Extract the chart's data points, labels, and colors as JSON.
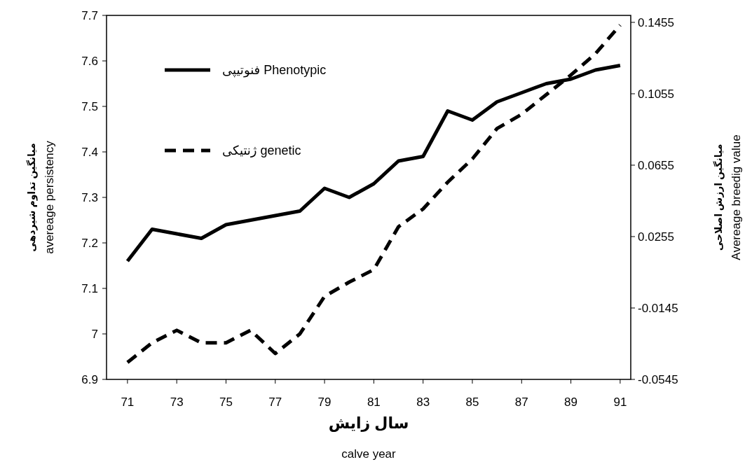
{
  "chart_data": {
    "type": "line",
    "xlabel": "سال زایش\ncalve year",
    "ylabel": "میانگین تداوم شیردهی\navereage persistency",
    "y2label": "میانگین ارزش اصلاحی\nAvereage  breedig value",
    "x": [
      71,
      72,
      73,
      74,
      75,
      76,
      77,
      78,
      79,
      80,
      81,
      82,
      83,
      84,
      85,
      86,
      87,
      88,
      89,
      90,
      91
    ],
    "xlim": [
      70.15,
      91.43
    ],
    "xticks": [
      71,
      73,
      75,
      77,
      79,
      81,
      83,
      85,
      87,
      89,
      91
    ],
    "ylim": [
      6.9,
      7.7
    ],
    "yticks": [
      {
        "value": 6.9,
        "label": "6.9"
      },
      {
        "value": 7.0,
        "label": "7"
      },
      {
        "value": 7.1,
        "label": "7.1"
      },
      {
        "value": 7.2,
        "label": "7.2"
      },
      {
        "value": 7.3,
        "label": "7.3"
      },
      {
        "value": 7.4,
        "label": "7.4"
      },
      {
        "value": 7.5,
        "label": "7.5"
      },
      {
        "value": 7.6,
        "label": "7.6"
      },
      {
        "value": 7.7,
        "label": "7.7"
      }
    ],
    "y2lim": [
      -0.0545,
      0.1494
    ],
    "y2ticks": [
      -0.0545,
      -0.0145,
      0.0255,
      0.0655,
      0.1055,
      0.1455
    ],
    "legend": "top left",
    "marker": "none",
    "grid": false,
    "series": [
      {
        "name": "فنوتیپی Phenotypic",
        "color": "#000000",
        "line_style": "solid",
        "values": [
          7.16,
          7.23,
          7.22,
          7.21,
          7.24,
          7.25,
          7.26,
          7.27,
          7.32,
          7.3,
          7.33,
          7.38,
          7.39,
          7.49,
          7.47,
          7.51,
          7.53,
          7.55,
          7.56,
          7.58,
          7.59
        ]
      },
      {
        "name": "ژنتیکی genetic",
        "color": "#000000",
        "line_style": "dashed",
        "axis": "y2",
        "values": [
          -0.045,
          -0.034,
          -0.027,
          -0.034,
          -0.034,
          -0.027,
          -0.04,
          -0.029,
          -0.008,
          0.0,
          0.007,
          0.031,
          0.041,
          0.056,
          0.069,
          0.086,
          0.094,
          0.105,
          0.116,
          0.128,
          0.144
        ]
      }
    ]
  }
}
